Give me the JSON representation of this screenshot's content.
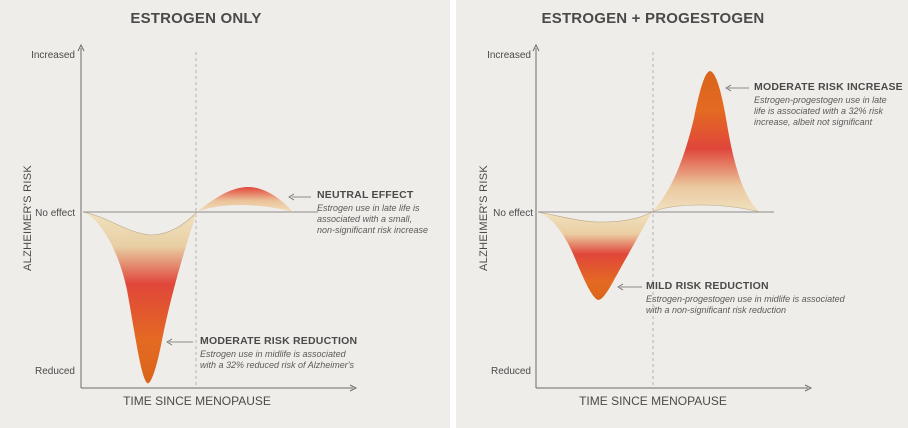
{
  "panels": [
    {
      "title": "ESTROGEN ONLY",
      "y_axis_label": "ALZHEIMER'S RISK",
      "x_axis_label": "TIME SINCE MENOPAUSE",
      "y_ticks": {
        "top": "Increased",
        "middle": "No effect",
        "bottom": "Reduced"
      },
      "annotations": [
        {
          "title": "NEUTRAL EFFECT",
          "lines": [
            "Estrogen use in late life is",
            "associated with a small,",
            "non-significant risk increase"
          ]
        },
        {
          "title": "MODERATE RISK REDUCTION",
          "lines": [
            "Estrogen use in midlife is associated",
            "with a 32% reduced risk of Alzheimer's"
          ]
        }
      ]
    },
    {
      "title": "ESTROGEN + PROGESTOGEN",
      "y_axis_label": "ALZHEIMER'S RISK",
      "x_axis_label": "TIME SINCE MENOPAUSE",
      "y_ticks": {
        "top": "Increased",
        "middle": "No effect",
        "bottom": "Reduced"
      },
      "annotations": [
        {
          "title": "MODERATE RISK INCREASE",
          "lines": [
            "Estrogen-progestogen use in late",
            "life is associated with a 32% risk",
            "increase, albeit not significant"
          ]
        },
        {
          "title": "MILD RISK REDUCTION",
          "lines": [
            "Estrogen-progestogen use in midlife is associated",
            "with a non-significant risk reduction"
          ]
        }
      ]
    }
  ],
  "colors": {
    "background": "#efedea",
    "axis": "#6b6b69",
    "text": "#4a4a48",
    "fill_light": "#efdcb4",
    "fill_red": "#e0463a",
    "fill_orange": "#e06a1e"
  }
}
